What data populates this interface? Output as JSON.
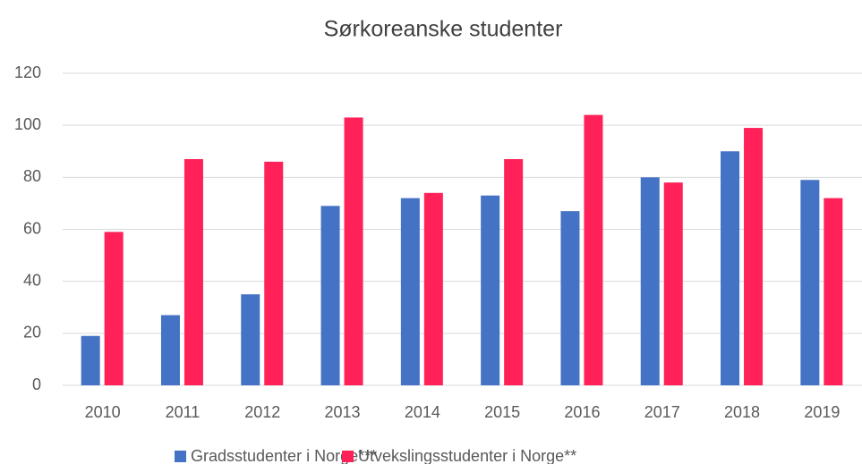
{
  "chart_data": {
    "type": "bar",
    "title": "Sørkoreanske studenter",
    "categories": [
      "2010",
      "2011",
      "2012",
      "2013",
      "2014",
      "2015",
      "2016",
      "2017",
      "2018",
      "2019"
    ],
    "series": [
      {
        "name": "Gradsstudenter i Norge***",
        "color": "#4472c4",
        "values": [
          19,
          27,
          35,
          69,
          72,
          73,
          67,
          80,
          90,
          79
        ]
      },
      {
        "name": "Utvekslingsstudenter i Norge**",
        "color": "#ff2157",
        "values": [
          59,
          87,
          86,
          103,
          74,
          87,
          104,
          78,
          99,
          72
        ]
      }
    ],
    "ylim": [
      0,
      120
    ],
    "yticks": [
      0,
      20,
      40,
      60,
      80,
      100,
      120
    ],
    "grid": true,
    "legend": "bottom"
  }
}
